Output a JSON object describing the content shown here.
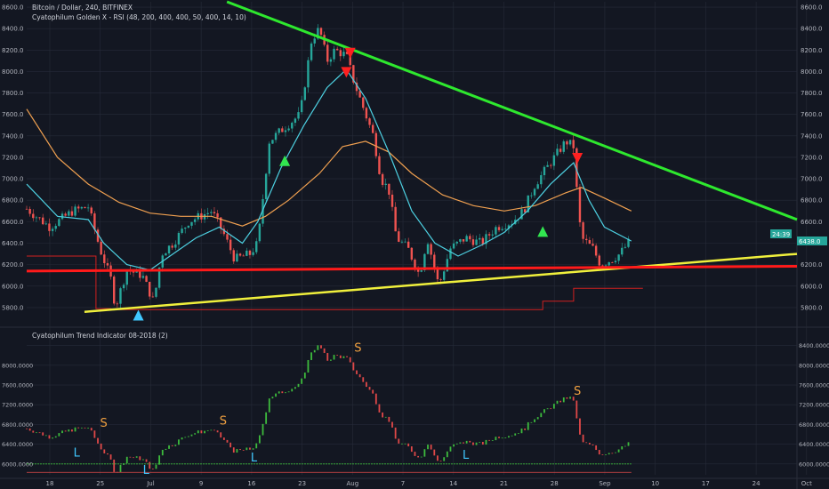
{
  "header": {
    "title": "Bitcoin / Dollar, 240, BITFINEX",
    "indicator": "Cyatophilum Golden X - RSI (48, 200, 400, 400, 50, 400, 14, 10)",
    "lower_indicator": "Cyatophilum Trend Indicator 08-2018 (2)",
    "countdown": "24:39",
    "last_price": "6438.0"
  },
  "colors": {
    "background": "#131722",
    "grid": "#262b38",
    "up_candle": "#26a69a",
    "down_candle": "#ef5350",
    "ema_fast": "#4dd0e1",
    "ema_slow": "#f0a050",
    "triangle_top": "#2ee82e",
    "triangle_bottom": "#f0f03c",
    "support": "#ff1a1a",
    "buy_marker": "#32e650",
    "sell_marker": "#ff2020",
    "signal_s": "#f0a040",
    "signal_l": "#40c8ff"
  },
  "chart_data": [
    {
      "type": "candlestick",
      "title": "Bitcoin / Dollar, 240, BITFINEX",
      "ylim": [
        5650,
        8650
      ],
      "y_ticks": [
        "8600.0",
        "8400.0",
        "8200.0",
        "8000.0",
        "7800.0",
        "7600.0",
        "7400.0",
        "7200.0",
        "7000.0",
        "6800.0",
        "6600.0",
        "6400.0",
        "6200.0",
        "6000.0",
        "5800.0"
      ],
      "x_ticks": [
        "18",
        "25",
        "Jul",
        "9",
        "16",
        "23",
        "Aug",
        "7",
        "14",
        "21",
        "28",
        "Sep",
        "10",
        "17",
        "24",
        "Oct"
      ],
      "close_series": [
        {
          "x": 0,
          "y": 6720
        },
        {
          "x": 3,
          "y": 6550
        },
        {
          "x": 6,
          "y": 6700
        },
        {
          "x": 8,
          "y": 6740
        },
        {
          "x": 9.5,
          "y": 6350
        },
        {
          "x": 11,
          "y": 6050
        },
        {
          "x": 11.5,
          "y": 5800
        },
        {
          "x": 13,
          "y": 6150
        },
        {
          "x": 15,
          "y": 6100
        },
        {
          "x": 16.5,
          "y": 5850
        },
        {
          "x": 17.5,
          "y": 6300
        },
        {
          "x": 19,
          "y": 6400
        },
        {
          "x": 21,
          "y": 6600
        },
        {
          "x": 24,
          "y": 6700
        },
        {
          "x": 25.5,
          "y": 6500
        },
        {
          "x": 27,
          "y": 6250
        },
        {
          "x": 29,
          "y": 6300
        },
        {
          "x": 30,
          "y": 6400
        },
        {
          "x": 31.5,
          "y": 7350
        },
        {
          "x": 33,
          "y": 7450
        },
        {
          "x": 35.5,
          "y": 7600
        },
        {
          "x": 37,
          "y": 8300
        },
        {
          "x": 38,
          "y": 8400
        },
        {
          "x": 39,
          "y": 8100
        },
        {
          "x": 40,
          "y": 8200
        },
        {
          "x": 41.5,
          "y": 8150
        },
        {
          "x": 42.5,
          "y": 7900
        },
        {
          "x": 43.5,
          "y": 7700
        },
        {
          "x": 45,
          "y": 7400
        },
        {
          "x": 46,
          "y": 7000
        },
        {
          "x": 47,
          "y": 6900
        },
        {
          "x": 48,
          "y": 6450
        },
        {
          "x": 49.5,
          "y": 6350
        },
        {
          "x": 51,
          "y": 6100
        },
        {
          "x": 52,
          "y": 6450
        },
        {
          "x": 53.5,
          "y": 6000
        },
        {
          "x": 55,
          "y": 6350
        },
        {
          "x": 57,
          "y": 6450
        },
        {
          "x": 59,
          "y": 6400
        },
        {
          "x": 61,
          "y": 6550
        },
        {
          "x": 63,
          "y": 6600
        },
        {
          "x": 64.5,
          "y": 6700
        },
        {
          "x": 66,
          "y": 6950
        },
        {
          "x": 67.5,
          "y": 7100
        },
        {
          "x": 69,
          "y": 7250
        },
        {
          "x": 70,
          "y": 7350
        },
        {
          "x": 71,
          "y": 7300
        },
        {
          "x": 71.5,
          "y": 6800
        },
        {
          "x": 72,
          "y": 6450
        },
        {
          "x": 73.5,
          "y": 6350
        },
        {
          "x": 74.5,
          "y": 6200
        },
        {
          "x": 76,
          "y": 6250
        },
        {
          "x": 77,
          "y": 6300
        },
        {
          "x": 78.5,
          "y": 6438
        }
      ],
      "ema_fast": [
        {
          "x": 0,
          "y": 6950
        },
        {
          "x": 4,
          "y": 6650
        },
        {
          "x": 8,
          "y": 6620
        },
        {
          "x": 10,
          "y": 6400
        },
        {
          "x": 13,
          "y": 6200
        },
        {
          "x": 16,
          "y": 6150
        },
        {
          "x": 19,
          "y": 6300
        },
        {
          "x": 22,
          "y": 6450
        },
        {
          "x": 25,
          "y": 6550
        },
        {
          "x": 28,
          "y": 6400
        },
        {
          "x": 30,
          "y": 6600
        },
        {
          "x": 33,
          "y": 7100
        },
        {
          "x": 36,
          "y": 7500
        },
        {
          "x": 39,
          "y": 7850
        },
        {
          "x": 41.5,
          "y": 8020
        },
        {
          "x": 44,
          "y": 7750
        },
        {
          "x": 47,
          "y": 7250
        },
        {
          "x": 50,
          "y": 6700
        },
        {
          "x": 53,
          "y": 6400
        },
        {
          "x": 56,
          "y": 6280
        },
        {
          "x": 59,
          "y": 6380
        },
        {
          "x": 62,
          "y": 6500
        },
        {
          "x": 65,
          "y": 6700
        },
        {
          "x": 68,
          "y": 6950
        },
        {
          "x": 71,
          "y": 7150
        },
        {
          "x": 73,
          "y": 6800
        },
        {
          "x": 75,
          "y": 6550
        },
        {
          "x": 78.5,
          "y": 6420
        }
      ],
      "ema_slow": [
        {
          "x": 0,
          "y": 7650
        },
        {
          "x": 4,
          "y": 7200
        },
        {
          "x": 8,
          "y": 6950
        },
        {
          "x": 12,
          "y": 6780
        },
        {
          "x": 16,
          "y": 6680
        },
        {
          "x": 20,
          "y": 6650
        },
        {
          "x": 24,
          "y": 6650
        },
        {
          "x": 28,
          "y": 6560
        },
        {
          "x": 31,
          "y": 6650
        },
        {
          "x": 34,
          "y": 6800
        },
        {
          "x": 38,
          "y": 7050
        },
        {
          "x": 41,
          "y": 7300
        },
        {
          "x": 44,
          "y": 7350
        },
        {
          "x": 47,
          "y": 7250
        },
        {
          "x": 50,
          "y": 7050
        },
        {
          "x": 54,
          "y": 6850
        },
        {
          "x": 58,
          "y": 6750
        },
        {
          "x": 62,
          "y": 6700
        },
        {
          "x": 66,
          "y": 6750
        },
        {
          "x": 70,
          "y": 6870
        },
        {
          "x": 72,
          "y": 6920
        },
        {
          "x": 75,
          "y": 6820
        },
        {
          "x": 78.5,
          "y": 6700
        }
      ],
      "trendlines": [
        {
          "name": "resistance",
          "points": [
            {
              "x": 26,
              "y": 8650
            },
            {
              "x": 100,
              "y": 6620
            }
          ]
        },
        {
          "name": "rising_support",
          "points": [
            {
              "x": 7.5,
              "y": 5760
            },
            {
              "x": 100,
              "y": 6300
            }
          ]
        },
        {
          "name": "horizontal_support",
          "points": [
            {
              "x": 0,
              "y": 6140
            },
            {
              "x": 100,
              "y": 6185
            }
          ]
        }
      ],
      "buy_signals": [
        {
          "x": 14.5,
          "y": 5720
        },
        {
          "x": 33.5,
          "y": 7160
        },
        {
          "x": 67,
          "y": 6500
        }
      ],
      "sell_signals": [
        {
          "x": 42,
          "y": 8180
        },
        {
          "x": 41.5,
          "y": 8000
        },
        {
          "x": 71.5,
          "y": 7200
        }
      ]
    },
    {
      "type": "line",
      "title": "Cyatophilum Trend Indicator 08-2018 (2)",
      "ylim": [
        5780,
        8700
      ],
      "y_ticks": [
        "8400.0000",
        "8000.0000",
        "7600.0000",
        "7200.0000",
        "6800.0000",
        "6400.0000",
        "6000.0000"
      ],
      "signals": [
        {
          "label": "S",
          "x": 10,
          "y": 6750
        },
        {
          "label": "L",
          "x": 6.5,
          "y": 6150
        },
        {
          "label": "S",
          "x": 25.5,
          "y": 6800
        },
        {
          "label": "L",
          "x": 29.5,
          "y": 6050
        },
        {
          "label": "L",
          "x": 15.5,
          "y": 5800
        },
        {
          "label": "S",
          "x": 43,
          "y": 8280
        },
        {
          "label": "L",
          "x": 57,
          "y": 6100
        },
        {
          "label": "S",
          "x": 71.5,
          "y": 7400
        }
      ]
    }
  ]
}
